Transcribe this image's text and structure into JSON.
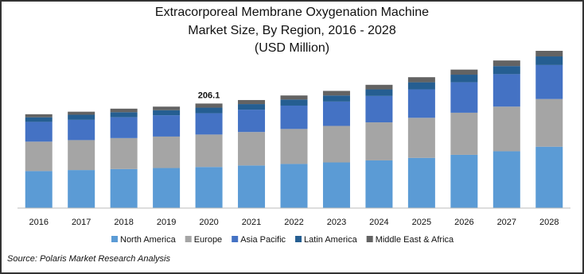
{
  "chart_data": {
    "type": "stacked-bar",
    "title": [
      "Extracorporeal Membrane Oxygenation Machine",
      "Market Size, By Region, 2016 - 2028"
    ],
    "subtitle": "(USD Million)",
    "categories": [
      "2016",
      "2017",
      "2018",
      "2019",
      "2020",
      "2021",
      "2022",
      "2023",
      "2024",
      "2025",
      "2026",
      "2027",
      "2028"
    ],
    "series": [
      {
        "name": "North America",
        "color": "#5b9bd5",
        "values": [
          73,
          75,
          77,
          79,
          81,
          84,
          87,
          90,
          94,
          99,
          105,
          112,
          121
        ]
      },
      {
        "name": "Europe",
        "color": "#a5a5a5",
        "values": [
          58,
          59,
          61,
          62,
          64,
          66,
          69,
          72,
          75,
          79,
          83,
          88,
          94
        ]
      },
      {
        "name": "Asia Pacific",
        "color": "#4472c4",
        "values": [
          39,
          40,
          41,
          42,
          42,
          44,
          46,
          48,
          52,
          56,
          60,
          64,
          67
        ]
      },
      {
        "name": "Latin America",
        "color": "#255e91",
        "values": [
          9,
          10,
          10,
          10,
          11,
          11,
          12,
          12,
          13,
          14,
          15,
          16,
          17
        ]
      },
      {
        "name": "Middle East & Africa",
        "color": "#636363",
        "values": [
          6,
          6,
          7,
          7,
          8.1,
          8,
          8,
          9,
          9,
          10,
          10,
          11,
          11
        ]
      }
    ],
    "annotation": {
      "category": "2020",
      "value": 206.1
    },
    "source": "Source: Polaris Market Research Analysis"
  }
}
